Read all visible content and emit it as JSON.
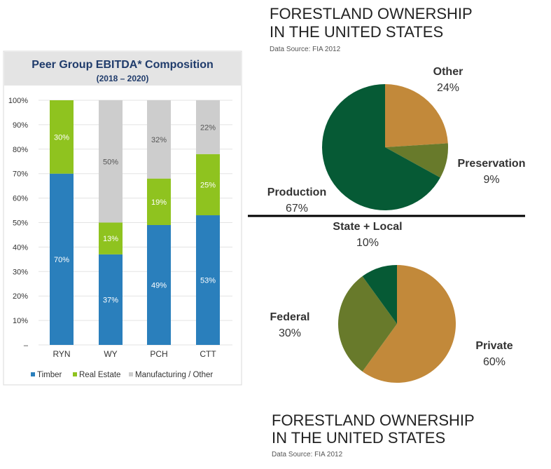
{
  "chart_data": [
    {
      "type": "bar",
      "stacked": true,
      "title": "Peer Group EBITDA* Composition",
      "subtitle": "(2018 – 2020)",
      "categories": [
        "RYN",
        "WY",
        "PCH",
        "CTT"
      ],
      "series": [
        {
          "name": "Timber",
          "color": "#2a7fbc",
          "values": [
            70,
            37,
            49,
            53
          ],
          "labels": [
            "70%",
            "37%",
            "49%",
            "53%"
          ]
        },
        {
          "name": "Real Estate",
          "color": "#8fc31f",
          "values": [
            30,
            13,
            19,
            25
          ],
          "labels": [
            "30%",
            "13%",
            "19%",
            "25%"
          ]
        },
        {
          "name": "Manufacturing / Other",
          "color": "#cdcdcd",
          "values": [
            0,
            50,
            32,
            22
          ],
          "labels": [
            "",
            "50%",
            "32%",
            "22%"
          ]
        }
      ],
      "yticks": [
        "–",
        "10%",
        "20%",
        "30%",
        "40%",
        "50%",
        "60%",
        "70%",
        "80%",
        "90%",
        "100%"
      ],
      "ylim": [
        0,
        100
      ],
      "grid": true,
      "legend": "bottom"
    },
    {
      "type": "pie",
      "title_lines": [
        "FORESTLAND OWNERSHIP",
        "IN THE UNITED STATES"
      ],
      "source": "Data Source: FIA 2012",
      "slices": [
        {
          "name": "Other",
          "value": 24,
          "label": "24%",
          "color": "#c2893a"
        },
        {
          "name": "Preservation",
          "value": 9,
          "label": "9%",
          "color": "#687a2b"
        },
        {
          "name": "Production",
          "value": 67,
          "label": "67%",
          "color": "#065a35"
        }
      ]
    },
    {
      "type": "pie",
      "title_lines": [
        "FORESTLAND OWNERSHIP",
        "IN THE UNITED STATES"
      ],
      "source": "Data Source: FIA 2012",
      "slices": [
        {
          "name": "Private",
          "value": 60,
          "label": "60%",
          "color": "#c2893a"
        },
        {
          "name": "Federal",
          "value": 30,
          "label": "30%",
          "color": "#687a2b"
        },
        {
          "name": "State + Local",
          "value": 10,
          "label": "10%",
          "color": "#065a35"
        }
      ]
    }
  ]
}
